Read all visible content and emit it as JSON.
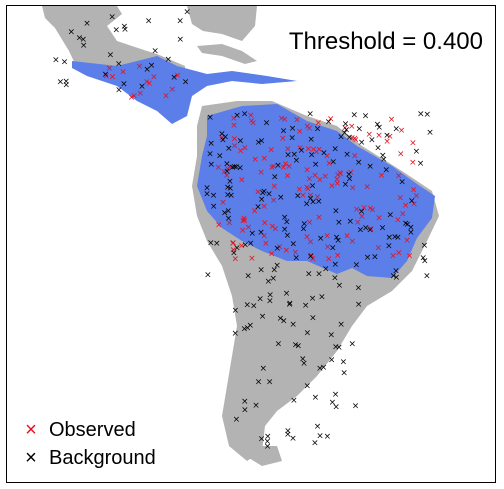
{
  "map": {
    "title": "Threshold = 0.400",
    "colors": {
      "land": "#b3b3b3",
      "suitable": "#5b7ee8",
      "observed": "#e8101e",
      "background": "#000000"
    },
    "legend": [
      {
        "label": "Observed",
        "color": "#e8101e",
        "marker": "×"
      },
      {
        "label": "Background",
        "color": "#000000",
        "marker": "×"
      }
    ]
  }
}
